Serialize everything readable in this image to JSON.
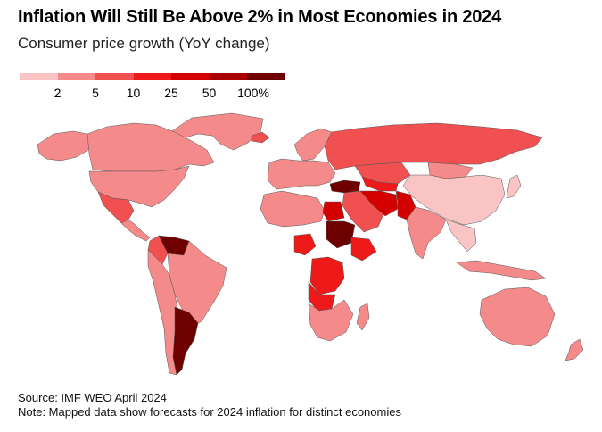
{
  "title": "Inflation Will Still Be Above 2% in Most Economies in 2024",
  "subtitle": "Consumer price growth (YoY change)",
  "legend": {
    "colors": [
      "#fbc4c4",
      "#f58a8a",
      "#f05050",
      "#ee1a1a",
      "#d40000",
      "#a90000",
      "#6e0000"
    ],
    "labels": [
      "2",
      "5",
      "10",
      "25",
      "50",
      "100%"
    ]
  },
  "map": {
    "no_data_color": "#ffffff",
    "regions": [
      {
        "name": "greenland",
        "bin": 1
      },
      {
        "name": "canada",
        "bin": 1
      },
      {
        "name": "usa",
        "bin": 1
      },
      {
        "name": "alaska",
        "bin": 1
      },
      {
        "name": "mexico",
        "bin": 2
      },
      {
        "name": "central-america",
        "bin": 1
      },
      {
        "name": "venezuela",
        "bin": 6
      },
      {
        "name": "colombia",
        "bin": 2
      },
      {
        "name": "brazil",
        "bin": 1
      },
      {
        "name": "peru-chile",
        "bin": 1
      },
      {
        "name": "argentina",
        "bin": 6
      },
      {
        "name": "iceland",
        "bin": 2
      },
      {
        "name": "scandinavia",
        "bin": 1
      },
      {
        "name": "europe",
        "bin": 1
      },
      {
        "name": "turkey",
        "bin": 6
      },
      {
        "name": "russia",
        "bin": 2
      },
      {
        "name": "kazakhstan",
        "bin": 2
      },
      {
        "name": "central-asia",
        "bin": 3
      },
      {
        "name": "iran",
        "bin": 4
      },
      {
        "name": "pakistan",
        "bin": 4
      },
      {
        "name": "middle-east",
        "bin": 2
      },
      {
        "name": "india",
        "bin": 1
      },
      {
        "name": "china",
        "bin": 0
      },
      {
        "name": "mongolia",
        "bin": 1
      },
      {
        "name": "southeast-asia",
        "bin": 0
      },
      {
        "name": "indonesia",
        "bin": 1
      },
      {
        "name": "japan",
        "bin": 0
      },
      {
        "name": "australia",
        "bin": 1
      },
      {
        "name": "new-zealand",
        "bin": 1
      },
      {
        "name": "north-africa",
        "bin": 1
      },
      {
        "name": "egypt",
        "bin": 4
      },
      {
        "name": "sudan",
        "bin": 6
      },
      {
        "name": "nigeria",
        "bin": 3
      },
      {
        "name": "ethiopia",
        "bin": 3
      },
      {
        "name": "drc",
        "bin": 3
      },
      {
        "name": "angola",
        "bin": 3
      },
      {
        "name": "southern-africa",
        "bin": 1
      },
      {
        "name": "madagascar",
        "bin": 1
      }
    ]
  },
  "footer": {
    "source": "Source: IMF WEO April 2024",
    "note": "Note: Mapped data show forecasts for 2024 inflation for distinct economies"
  }
}
